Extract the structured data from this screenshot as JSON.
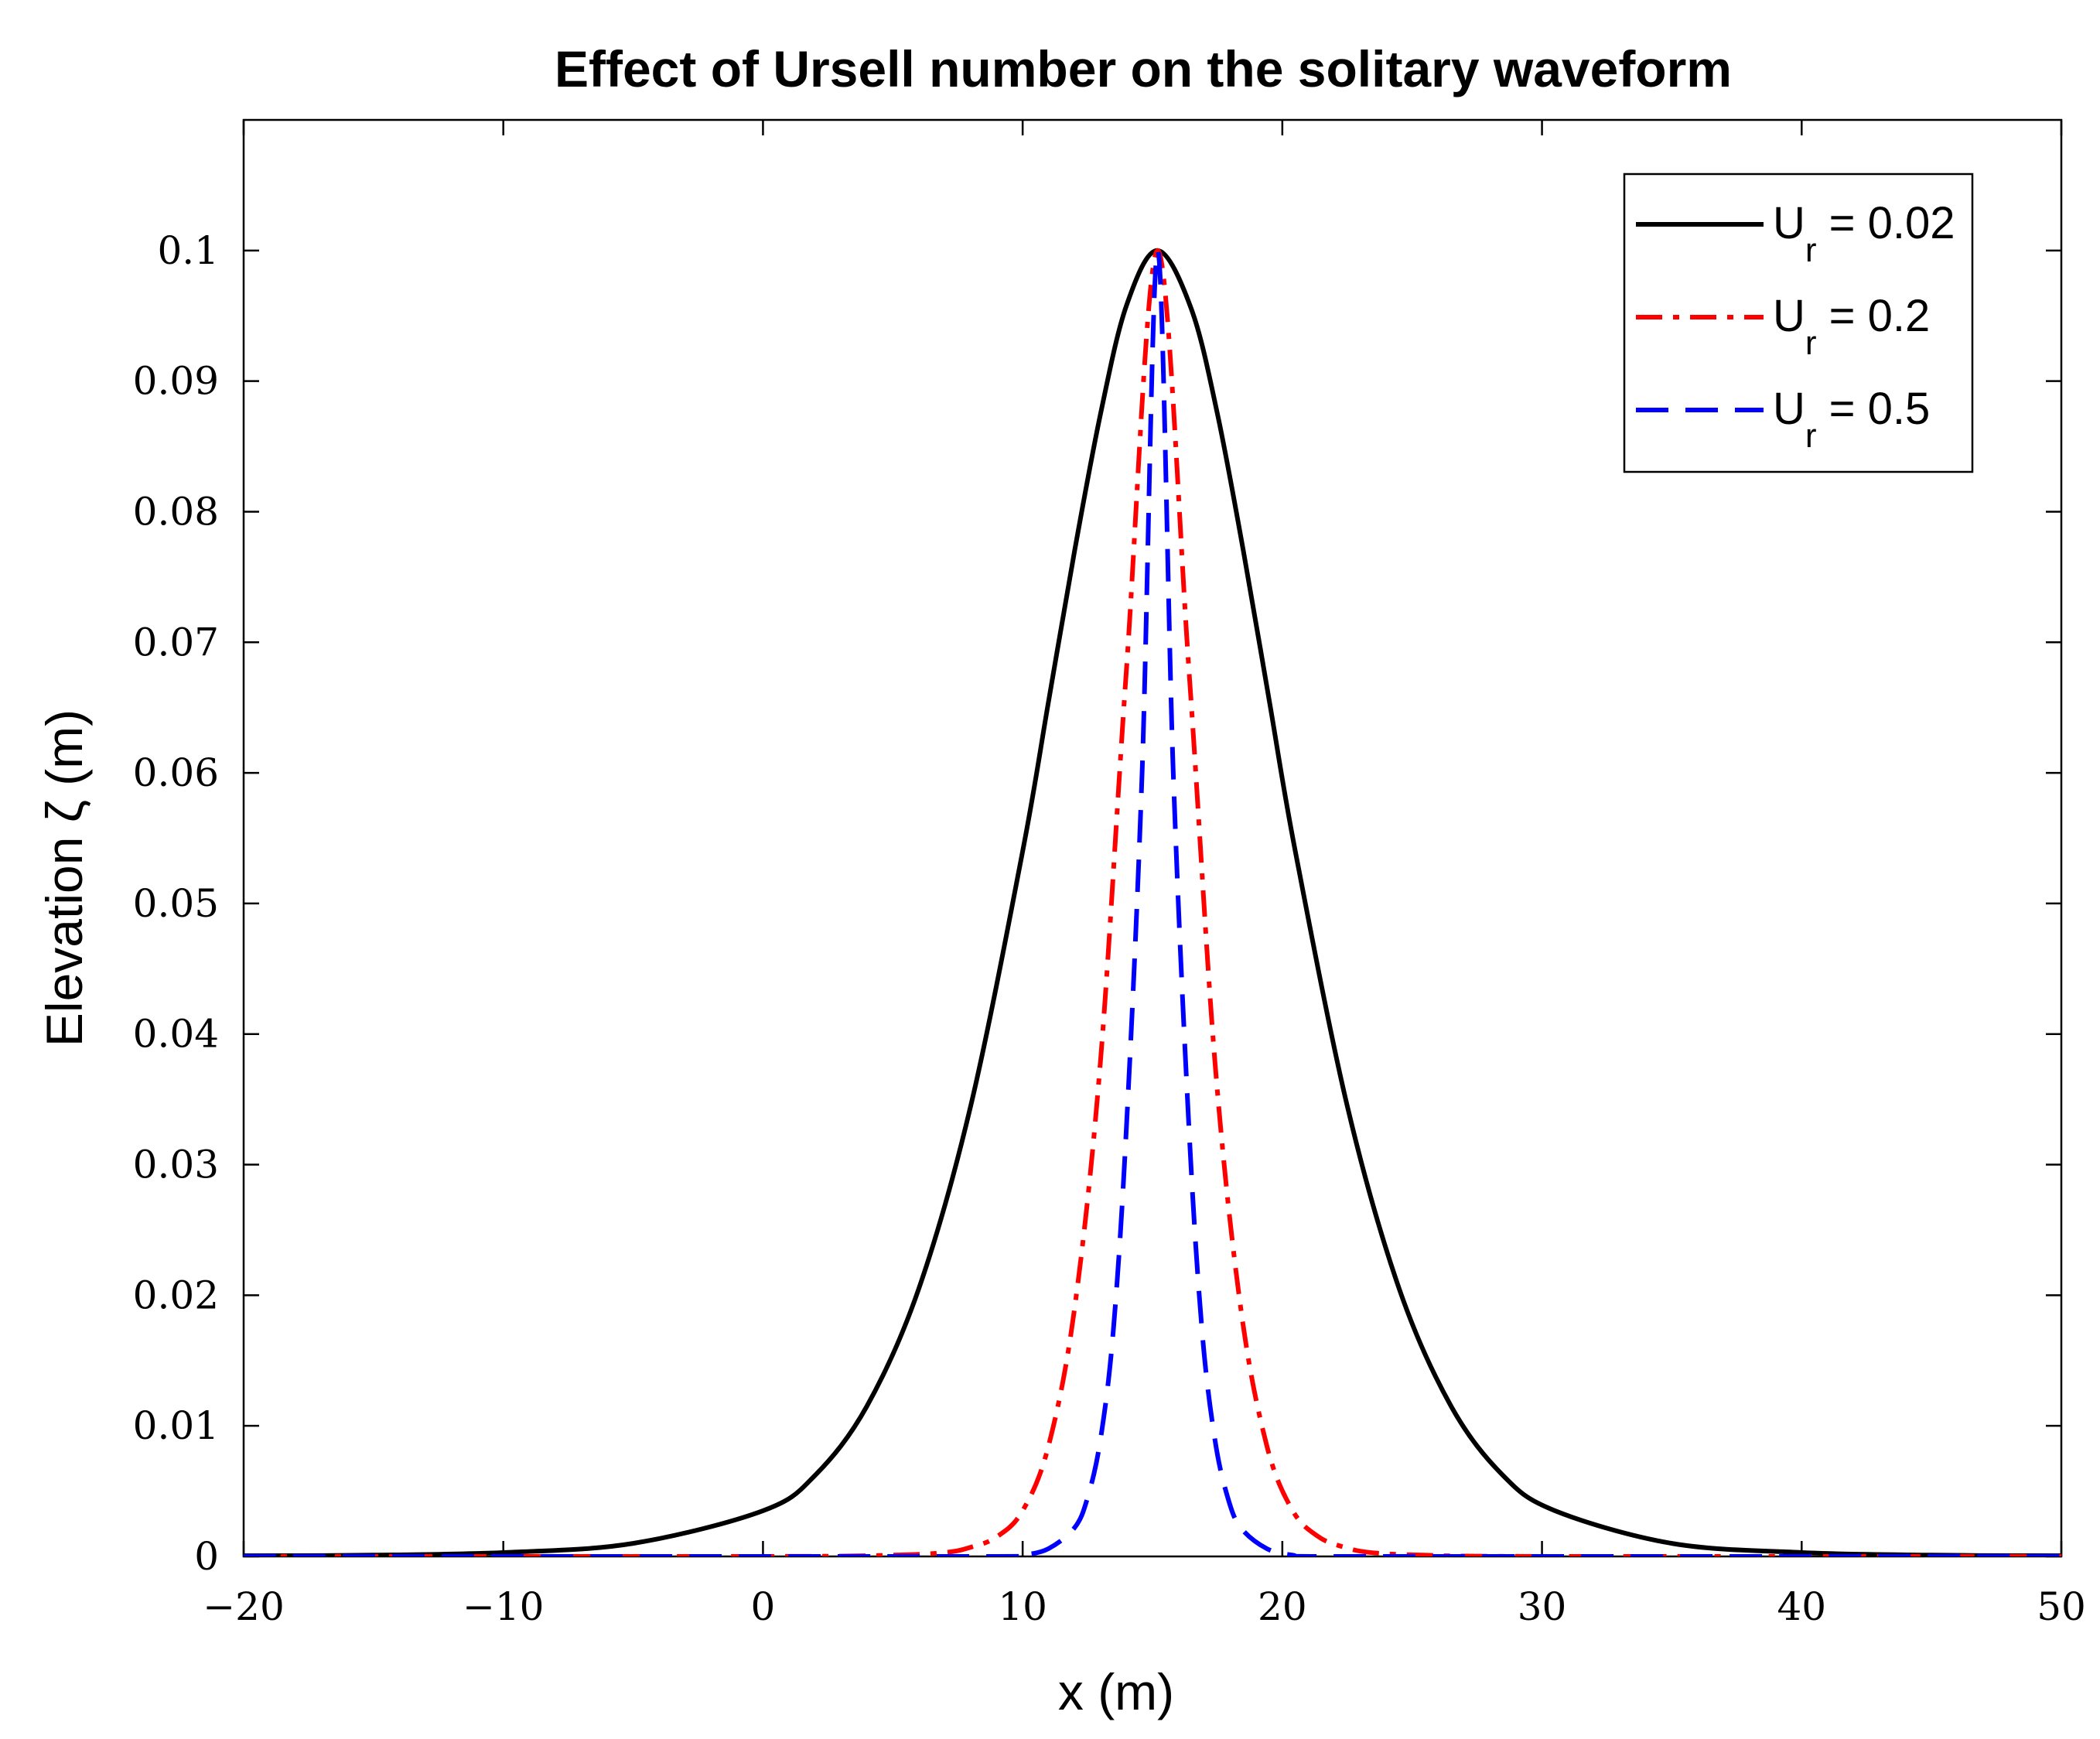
{
  "chart_data": {
    "type": "line",
    "title": "Effect of Ursell number on the solitary waveform",
    "xlabel": "x (m)",
    "ylabel": "Elevation ζ (m)",
    "xlim": [
      -20,
      50
    ],
    "ylim": [
      0,
      0.11
    ],
    "xticks": [
      -20,
      -10,
      0,
      10,
      20,
      30,
      40,
      50
    ],
    "xtick_labels": [
      "−20",
      "−10",
      "0",
      "10",
      "20",
      "30",
      "40",
      "50"
    ],
    "yticks": [
      0,
      0.01,
      0.02,
      0.03,
      0.04,
      0.05,
      0.06,
      0.07,
      0.08,
      0.09,
      0.1
    ],
    "ytick_labels": [
      "0",
      "0.01",
      "0.02",
      "0.03",
      "0.04",
      "0.05",
      "0.06",
      "0.07",
      "0.08",
      "0.09",
      "0.1"
    ],
    "grid": false,
    "legend_position": "top-right",
    "series": [
      {
        "name": "U_r = 0.02",
        "legend_main": "U",
        "legend_sub": "r",
        "legend_value": " = 0.02",
        "color": "#000000",
        "style": "solid",
        "x": [
          -20,
          -15,
          -10,
          -5,
          0,
          2,
          4,
          6,
          8,
          10,
          11,
          12,
          13,
          14,
          15.2,
          16.5,
          17.5,
          18.5,
          19.5,
          20.5,
          22.5,
          24.5,
          26.5,
          28.5,
          30.5,
          35,
          40,
          45,
          50
        ],
        "values": [
          5e-05,
          0.0001,
          0.0003,
          0.001,
          0.0035,
          0.0062,
          0.0115,
          0.0205,
          0.0345,
          0.054,
          0.0655,
          0.077,
          0.0875,
          0.0958,
          0.1,
          0.0955,
          0.0875,
          0.077,
          0.0655,
          0.054,
          0.0345,
          0.0205,
          0.0115,
          0.0062,
          0.0035,
          0.001,
          0.0003,
          0.0001,
          5e-05
        ]
      },
      {
        "name": "U_r = 0.2",
        "legend_main": "U",
        "legend_sub": "r",
        "legend_value": " = 0.2",
        "color": "#ff0000",
        "style": "dashdot",
        "x": [
          -20,
          0,
          5,
          7,
          8,
          9,
          10,
          11,
          12,
          13,
          14,
          15.2,
          16.4,
          17.4,
          18.4,
          19.4,
          20.4,
          21.4,
          22.4,
          23.4,
          25.4,
          30,
          50
        ],
        "values": [
          0,
          0,
          0.0001,
          0.0003,
          0.0007,
          0.0015,
          0.0035,
          0.0085,
          0.019,
          0.038,
          0.068,
          0.1,
          0.068,
          0.038,
          0.019,
          0.0085,
          0.0035,
          0.0015,
          0.0007,
          0.0003,
          0.0001,
          0,
          0
        ]
      },
      {
        "name": "U_r = 0.5",
        "legend_main": "U",
        "legend_sub": "r",
        "legend_value": " = 0.5",
        "color": "#0000ff",
        "style": "dashed",
        "x": [
          -20,
          0,
          9,
          10,
          11,
          12,
          12.5,
          13,
          13.5,
          14,
          14.6,
          15.2,
          15.8,
          16.4,
          16.9,
          17.4,
          17.9,
          18.4,
          19.4,
          20.4,
          21.4,
          30,
          50
        ],
        "values": [
          0,
          0,
          0,
          0.0001,
          0.0006,
          0.0022,
          0.0045,
          0.009,
          0.0175,
          0.033,
          0.06,
          0.1,
          0.06,
          0.033,
          0.0175,
          0.009,
          0.0045,
          0.0022,
          0.0006,
          0.0001,
          0,
          0,
          0
        ]
      }
    ]
  }
}
